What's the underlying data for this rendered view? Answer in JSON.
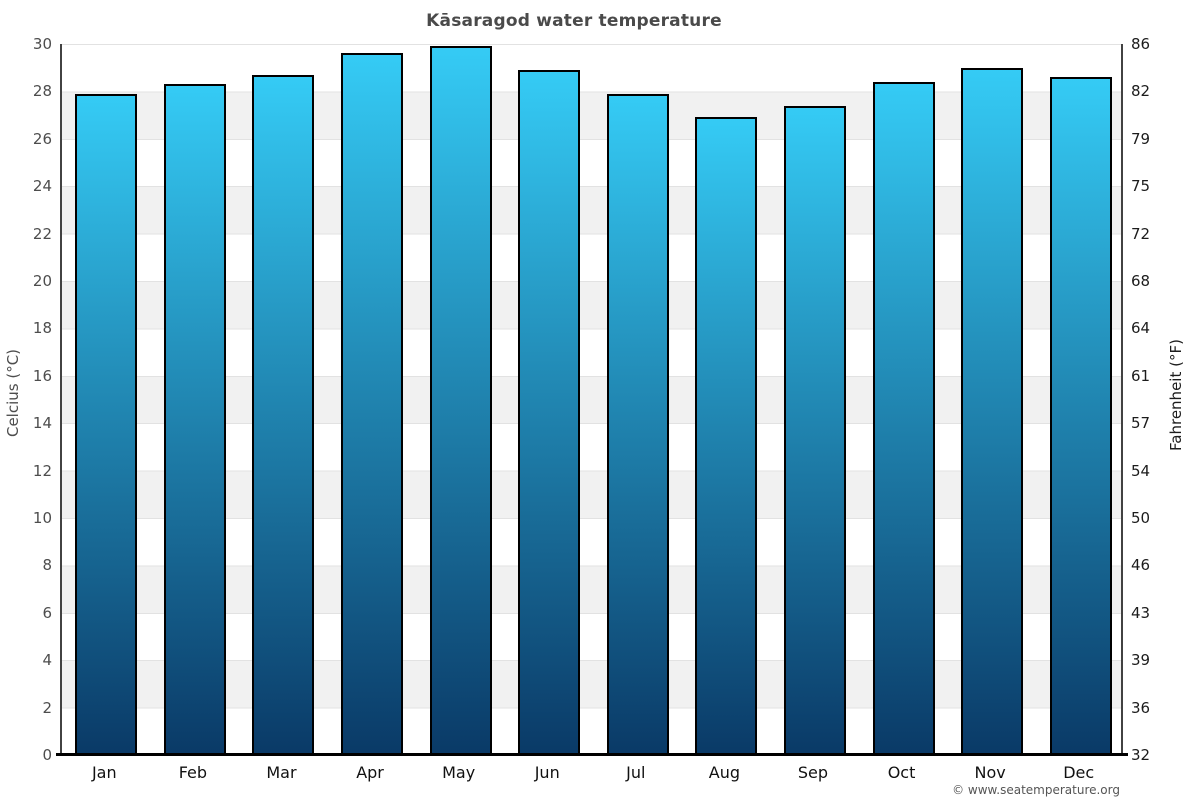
{
  "title": "Kāsaragod water temperature",
  "footer": "© www.seatemperature.org",
  "chart_data": {
    "type": "bar",
    "title": "Kāsaragod water temperature",
    "categories": [
      "Jan",
      "Feb",
      "Mar",
      "Apr",
      "May",
      "Jun",
      "Jul",
      "Aug",
      "Sep",
      "Oct",
      "Nov",
      "Dec"
    ],
    "values": [
      27.9,
      28.3,
      28.7,
      29.6,
      29.9,
      28.9,
      27.9,
      26.9,
      27.4,
      28.4,
      29.0,
      28.6
    ],
    "xlabel": "",
    "ylabel": "Celcius (°C)",
    "ylabel_right": "Fahrenheit (°F)",
    "ylim": [
      0,
      30
    ],
    "y_ticks_celsius": [
      30,
      28,
      26,
      24,
      22,
      20,
      18,
      16,
      14,
      12,
      10,
      8,
      6,
      4,
      2,
      0
    ],
    "y_ticks_fahrenheit": [
      86,
      82,
      79,
      75,
      72,
      68,
      64,
      61,
      57,
      54,
      50,
      46,
      43,
      39,
      36,
      32
    ],
    "grid": "alternating horizontal bands every 2°C, thin gridlines",
    "legend_position": "none",
    "bar_style": "vertical gradient, black outline"
  },
  "colors": {
    "bar_gradient_top": "#35cbf5",
    "bar_gradient_bottom": "#0a3a67",
    "bar_border": "#000000",
    "band_gray": "#f1f1f1",
    "grid_line": "#e2e2e2",
    "axis_line": "#424242",
    "baseline": "#000000",
    "title_text": "#4a4a4a",
    "left_tick_text": "#4d4d4d",
    "right_tick_text": "#1c1c1c",
    "month_text": "#111111",
    "footer_text": "#555555"
  }
}
